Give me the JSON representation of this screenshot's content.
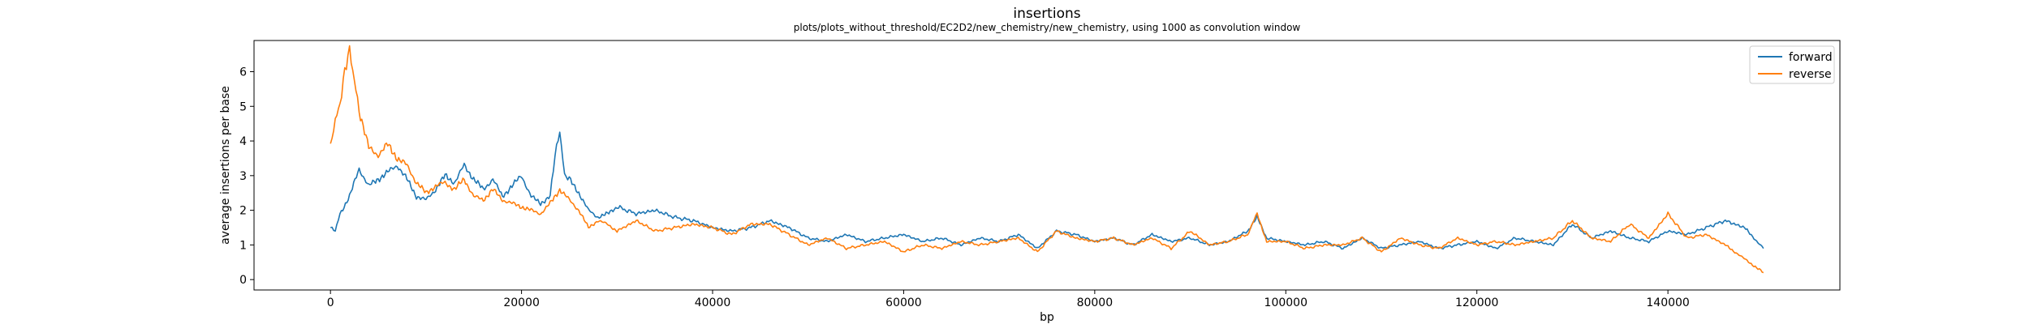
{
  "chart_data": {
    "type": "line",
    "title": "insertions",
    "subtitle": "plots/plots_without_threshold/EC2D2/new_chemistry/new_chemistry, using 1000 as convolution window",
    "xlabel": "bp",
    "ylabel": "average insertions per base",
    "xlim": [
      -8000,
      158000
    ],
    "ylim": [
      -0.3,
      6.9
    ],
    "xticks": [
      0,
      20000,
      40000,
      60000,
      80000,
      100000,
      120000,
      140000
    ],
    "xtick_labels": [
      "0",
      "20000",
      "40000",
      "60000",
      "80000",
      "100000",
      "120000",
      "140000"
    ],
    "yticks": [
      0,
      1,
      2,
      3,
      4,
      5,
      6
    ],
    "ytick_labels": [
      "0",
      "1",
      "2",
      "3",
      "4",
      "5",
      "6"
    ],
    "grid": false,
    "legend_position": "top-right",
    "series": [
      {
        "name": "forward",
        "color": "#1f77b4",
        "x": [
          0,
          500,
          1000,
          2000,
          3000,
          4000,
          5000,
          6000,
          7000,
          8000,
          9000,
          10000,
          11000,
          12000,
          13000,
          14000,
          15000,
          16000,
          17000,
          18000,
          19000,
          20000,
          21000,
          22000,
          23000,
          23500,
          24000,
          24500,
          25000,
          26000,
          27000,
          28000,
          29000,
          30000,
          32000,
          34000,
          36000,
          38000,
          40000,
          42000,
          44000,
          46000,
          48000,
          50000,
          52000,
          54000,
          56000,
          58000,
          60000,
          62000,
          64000,
          66000,
          68000,
          70000,
          72000,
          74000,
          76000,
          78000,
          80000,
          82000,
          84000,
          86000,
          88000,
          90000,
          92000,
          94000,
          96000,
          97000,
          98000,
          100000,
          102000,
          104000,
          106000,
          108000,
          110000,
          112000,
          114000,
          116000,
          118000,
          120000,
          122000,
          124000,
          126000,
          128000,
          130000,
          132000,
          134000,
          136000,
          138000,
          140000,
          142000,
          144000,
          146000,
          148000,
          149000,
          150000
        ],
        "y": [
          1.5,
          1.4,
          1.9,
          2.4,
          3.2,
          2.7,
          2.9,
          3.1,
          3.3,
          2.9,
          2.4,
          2.3,
          2.6,
          3.0,
          2.8,
          3.3,
          2.9,
          2.6,
          2.9,
          2.4,
          2.7,
          3.0,
          2.4,
          2.2,
          2.4,
          3.6,
          4.3,
          3.0,
          2.9,
          2.5,
          2.0,
          1.8,
          1.9,
          2.1,
          1.9,
          2.0,
          1.8,
          1.7,
          1.5,
          1.4,
          1.5,
          1.7,
          1.5,
          1.2,
          1.1,
          1.3,
          1.1,
          1.2,
          1.3,
          1.1,
          1.2,
          1.0,
          1.2,
          1.1,
          1.3,
          0.9,
          1.4,
          1.3,
          1.1,
          1.2,
          1.0,
          1.3,
          1.1,
          1.2,
          1.0,
          1.1,
          1.4,
          1.8,
          1.2,
          1.1,
          1.0,
          1.1,
          0.9,
          1.2,
          0.9,
          1.0,
          1.1,
          0.9,
          1.0,
          1.1,
          0.9,
          1.2,
          1.1,
          1.0,
          1.6,
          1.2,
          1.4,
          1.2,
          1.1,
          1.4,
          1.3,
          1.5,
          1.7,
          1.5,
          1.2,
          0.9
        ]
      },
      {
        "name": "reverse",
        "color": "#ff7f0e",
        "x": [
          0,
          500,
          1000,
          1500,
          2000,
          2500,
          3000,
          4000,
          5000,
          6000,
          7000,
          8000,
          9000,
          10000,
          11000,
          12000,
          13000,
          14000,
          15000,
          16000,
          17000,
          18000,
          19000,
          20000,
          21000,
          22000,
          23000,
          24000,
          25000,
          26000,
          27000,
          28000,
          29000,
          30000,
          32000,
          34000,
          36000,
          38000,
          40000,
          42000,
          44000,
          46000,
          48000,
          50000,
          52000,
          54000,
          56000,
          58000,
          60000,
          62000,
          64000,
          66000,
          68000,
          70000,
          72000,
          74000,
          76000,
          78000,
          80000,
          82000,
          84000,
          86000,
          88000,
          90000,
          92000,
          94000,
          96000,
          97000,
          98000,
          100000,
          102000,
          104000,
          106000,
          108000,
          110000,
          112000,
          114000,
          116000,
          118000,
          120000,
          122000,
          124000,
          126000,
          128000,
          130000,
          132000,
          134000,
          136000,
          138000,
          140000,
          142000,
          144000,
          146000,
          147000,
          148000,
          149000,
          150000
        ],
        "y": [
          3.8,
          4.6,
          5.1,
          6.0,
          6.6,
          5.8,
          4.9,
          3.8,
          3.6,
          3.9,
          3.5,
          3.3,
          2.8,
          2.5,
          2.7,
          2.8,
          2.6,
          2.9,
          2.4,
          2.3,
          2.6,
          2.3,
          2.2,
          2.1,
          2.0,
          1.9,
          2.2,
          2.6,
          2.3,
          2.0,
          1.5,
          1.7,
          1.6,
          1.4,
          1.7,
          1.4,
          1.5,
          1.6,
          1.5,
          1.3,
          1.6,
          1.6,
          1.3,
          1.0,
          1.2,
          0.9,
          1.0,
          1.1,
          0.8,
          1.0,
          0.9,
          1.1,
          1.0,
          1.1,
          1.2,
          0.8,
          1.4,
          1.2,
          1.1,
          1.2,
          1.0,
          1.2,
          0.9,
          1.4,
          1.0,
          1.1,
          1.3,
          1.9,
          1.1,
          1.1,
          0.9,
          1.0,
          1.0,
          1.2,
          0.8,
          1.2,
          1.0,
          0.9,
          1.2,
          1.0,
          1.1,
          1.0,
          1.1,
          1.2,
          1.7,
          1.2,
          1.1,
          1.6,
          1.2,
          1.9,
          1.2,
          1.3,
          1.0,
          0.8,
          0.6,
          0.4,
          0.2
        ]
      }
    ]
  }
}
